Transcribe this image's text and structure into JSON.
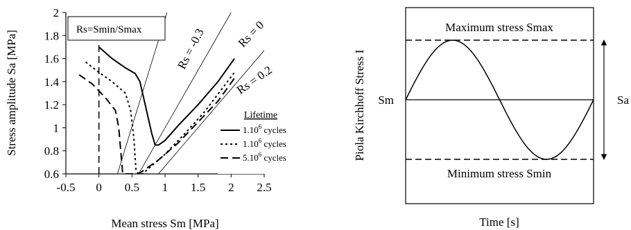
{
  "chart_data": [
    {
      "type": "line",
      "xlabel": "Mean stress Sm [MPa]",
      "ylabel": "Stress amplitude Sa [MPa]",
      "xlim": [
        -0.5,
        2.5
      ],
      "ylim": [
        0.6,
        2.0
      ],
      "x_ticks": [
        -0.5,
        0,
        0.5,
        1,
        1.5,
        2,
        2.5
      ],
      "x_tick_labels": [
        "-0.5",
        "0",
        "0.5",
        "1",
        "1.5",
        "2",
        "2.5"
      ],
      "y_ticks": [
        0.6,
        0.8,
        1.0,
        1.2,
        1.4,
        1.6,
        1.8,
        2.0
      ],
      "y_tick_labels": [
        "0.6",
        "0.8",
        "1",
        "1.2",
        "1.4",
        "1.6",
        "1.8",
        "2"
      ],
      "grid": false,
      "box_label": "Rs=Smin/Smax",
      "ratio_lines": [
        {
          "label": "Rs = -0.3",
          "x": [
            0.28,
            1.03
          ],
          "y": [
            0.6,
            2.0
          ]
        },
        {
          "label": "Rs = 0",
          "x": [
            0.6,
            2.0
          ],
          "y": [
            0.6,
            2.0
          ]
        },
        {
          "label": "Rs = 0.2",
          "x": [
            0.9,
            2.5
          ],
          "y": [
            0.6,
            1.67
          ]
        }
      ],
      "legend": {
        "title": "Lifetime",
        "position": "bottom-right",
        "entries": [
          {
            "base": "1.10",
            "exp": "6",
            "suffix": " cycles",
            "dash": "solid"
          },
          {
            "base": "1.10",
            "exp": "6",
            "suffix": " cycles",
            "dash": "dotted"
          },
          {
            "base": "5.10",
            "exp": "6",
            "suffix": " cycles",
            "dash": "dashed"
          }
        ]
      },
      "series": [
        {
          "dash": "solid",
          "x": [
            0,
            0.2,
            0.4,
            0.55,
            0.62,
            0.7,
            0.8,
            0.85,
            0.9,
            1.0,
            1.2,
            1.5,
            1.8,
            2.05
          ],
          "y": [
            1.7,
            1.6,
            1.52,
            1.47,
            1.4,
            1.2,
            0.95,
            0.85,
            0.85,
            0.89,
            1.02,
            1.2,
            1.4,
            1.6
          ]
        },
        {
          "dash": "dotted",
          "x": [
            -0.2,
            0,
            0.2,
            0.4,
            0.48,
            0.53,
            0.56,
            0.6,
            0.66,
            0.8,
            1.0,
            1.3,
            1.6,
            2.05
          ],
          "y": [
            1.57,
            1.48,
            1.4,
            1.3,
            1.15,
            0.9,
            0.63,
            0.6,
            0.6,
            0.67,
            0.77,
            0.95,
            1.14,
            1.48
          ]
        },
        {
          "dash": "dashed",
          "x": [
            -0.3,
            -0.1,
            0.1,
            0.25,
            0.3,
            0.33,
            0.36,
            0.6,
            0.7,
            0.9,
            1.2,
            1.5,
            1.8,
            2.05
          ],
          "y": [
            1.46,
            1.38,
            1.26,
            1.15,
            1.0,
            0.8,
            0.6,
            0.6,
            0.64,
            0.72,
            0.87,
            1.05,
            1.23,
            1.43
          ]
        }
      ],
      "sm_zero_dashed_line": {
        "x": 0,
        "y": [
          0.6,
          1.73
        ]
      }
    },
    {
      "type": "line",
      "xlabel": "Time [s]",
      "ylabel": "Piola Kirchhoff Stress I",
      "curve": "sine",
      "cycles": 1,
      "labels": {
        "top": "Maximum stress Smax",
        "bottom": "Minimum stress Smin",
        "mean": "Sm",
        "amplitude": "Sa"
      }
    }
  ]
}
